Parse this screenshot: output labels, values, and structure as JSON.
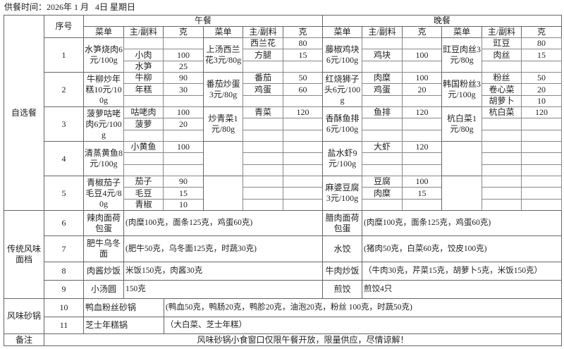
{
  "header": {
    "service_time": "供餐时间：2026年 1 月   4日 星期日",
    "seq": "序号",
    "lunch": "午餐",
    "dinner": "晚餐",
    "col_menu": "菜单",
    "col_ingredient": "主/副料",
    "col_grams": "克"
  },
  "self_select": {
    "label": "自选餐",
    "rows": [
      {
        "seq": "1",
        "lunch": [
          {
            "dish": "水笋烧肉6元/100g",
            "ings": [
              [
                "",
                ""
              ],
              [
                "小肉",
                "100"
              ],
              [
                "水笋",
                "25"
              ]
            ]
          },
          {
            "dish": "上汤西兰花3元/80g",
            "ings": [
              [
                "西兰花",
                "80"
              ],
              [
                "方腿",
                "15"
              ],
              [
                "",
                ""
              ]
            ]
          }
        ],
        "dinner": [
          {
            "dish": "藤椒鸡块6元/100g",
            "ings": [
              [
                "",
                ""
              ],
              [
                "鸡块",
                "100"
              ],
              [
                "",
                ""
              ]
            ]
          },
          {
            "dish": "豇豆肉丝3元/80g",
            "ings": [
              [
                "豇豆",
                "80"
              ],
              [
                "肉丝",
                "15"
              ],
              [
                "",
                ""
              ]
            ]
          }
        ]
      },
      {
        "seq": "2",
        "lunch": [
          {
            "dish": "牛柳炒年糕10元/100g",
            "ings": [
              [
                "牛柳",
                "90"
              ],
              [
                "年糕",
                "30"
              ],
              [
                "",
                ""
              ]
            ]
          },
          {
            "dish": "番茄炒蛋3元/80g",
            "ings": [
              [
                "番茄",
                "50"
              ],
              [
                "鸡蛋",
                "60"
              ],
              [
                "",
                ""
              ]
            ]
          }
        ],
        "dinner": [
          {
            "dish": "红烧狮子头6元/100g",
            "ings": [
              [
                "肉糜",
                "100"
              ],
              [
                "鸡蛋",
                "20"
              ],
              [
                "",
                ""
              ]
            ]
          },
          {
            "dish": "韩国粉丝3元/100g",
            "ings": [
              [
                "粉丝",
                "50"
              ],
              [
                "卷心菜",
                "20"
              ],
              [
                "胡萝卜",
                "10"
              ]
            ]
          }
        ]
      },
      {
        "seq": "3",
        "lunch": [
          {
            "dish": "菠萝咕咾肉6元/100g",
            "ings": [
              [
                "咕咾肉",
                "100"
              ],
              [
                "菠萝",
                "20"
              ],
              [
                "",
                ""
              ]
            ]
          },
          {
            "dish": "炒青菜1元/80g",
            "ings": [
              [
                "青菜",
                "120"
              ],
              [
                "",
                ""
              ],
              [
                "",
                ""
              ]
            ]
          }
        ],
        "dinner": [
          {
            "dish": "香酥鱼排6元/100g",
            "ings": [
              [
                "鱼排",
                "120"
              ],
              [
                "",
                ""
              ],
              [
                "",
                ""
              ]
            ]
          },
          {
            "dish": "杭白菜1元/80g",
            "ings": [
              [
                "杭白菜",
                "120"
              ],
              [
                "",
                ""
              ],
              [
                "",
                ""
              ]
            ]
          }
        ]
      },
      {
        "seq": "4",
        "lunch": [
          {
            "dish": "清蒸黄鱼8元/100g",
            "ings": [
              [
                "小黄鱼",
                "100"
              ],
              [
                "",
                ""
              ],
              [
                "",
                ""
              ]
            ]
          },
          {
            "dish": "",
            "ings": [
              [
                "",
                ""
              ],
              [
                "",
                ""
              ],
              [
                "",
                ""
              ]
            ]
          }
        ],
        "dinner": [
          {
            "dish": "盐水虾9元/100g",
            "ings": [
              [
                "大虾",
                "120"
              ],
              [
                "",
                ""
              ],
              [
                "",
                ""
              ]
            ]
          },
          {
            "dish": "",
            "ings": [
              [
                "",
                ""
              ],
              [
                "",
                ""
              ],
              [
                "",
                ""
              ]
            ]
          }
        ]
      },
      {
        "seq": "5",
        "lunch": [
          {
            "dish": "青椒茄子毛豆4元/80g",
            "ings": [
              [
                "茄子",
                "90"
              ],
              [
                "毛豆",
                "15"
              ],
              [
                "青椒",
                "10"
              ]
            ]
          },
          {
            "dish": "",
            "ings": [
              [
                "",
                ""
              ],
              [
                "",
                ""
              ],
              [
                "",
                ""
              ]
            ]
          }
        ],
        "dinner": [
          {
            "dish": "麻婆豆腐3元/100g",
            "ings": [
              [
                "豆腐",
                "100"
              ],
              [
                "肉糜",
                "15"
              ],
              [
                "",
                ""
              ]
            ]
          },
          {
            "dish": "",
            "ings": [
              [
                "",
                ""
              ],
              [
                "",
                ""
              ],
              [
                "",
                ""
              ]
            ]
          }
        ]
      }
    ]
  },
  "noodles": {
    "label": "传统风味面档",
    "rows": [
      {
        "seq": "6",
        "lunch_dish": "辣肉面荷包蛋",
        "lunch_desc": "(肉糜100克，面条125克，鸡蛋60克)",
        "dinner_dish": "腊肉面荷包蛋",
        "dinner_desc": "(肉糜100克，面条125克，鸡蛋60克)"
      },
      {
        "seq": "7",
        "lunch_dish": "肥牛乌冬面",
        "lunch_desc": "(肥牛50克，乌冬面125克，时蔬30克)",
        "dinner_dish": "水饺",
        "dinner_desc": "(猪肉50克，白菜60克，饺皮100克)"
      },
      {
        "seq": "8",
        "lunch_dish": "肉酱炒饭",
        "lunch_desc": "米饭150克，肉酱30克",
        "dinner_dish": "牛肉炒饭",
        "dinner_desc": "（牛肉30克，芹菜15克，胡萝卜5克，米饭150克）"
      },
      {
        "seq": "9",
        "lunch_dish": "小汤圆",
        "lunch_desc": "150克",
        "dinner_dish": "煎饺",
        "dinner_desc": "煎饺4只"
      }
    ]
  },
  "claypot": {
    "label": "风味砂锅",
    "rows": [
      {
        "seq": "10",
        "name": "鸭血粉丝砂锅",
        "desc": "(鸭血50克，鸭肠20克，鸭胗20克，油泡20克，粉丝 100克，时蔬50克)"
      },
      {
        "seq": "11",
        "name": "芝士年糕锅",
        "desc": "（大白菜、芝士年糕）"
      }
    ]
  },
  "remarks": {
    "label": "备注",
    "text": "风味砂锅小食窗口仅限午餐开放，限量供应，尽情谅解！"
  }
}
